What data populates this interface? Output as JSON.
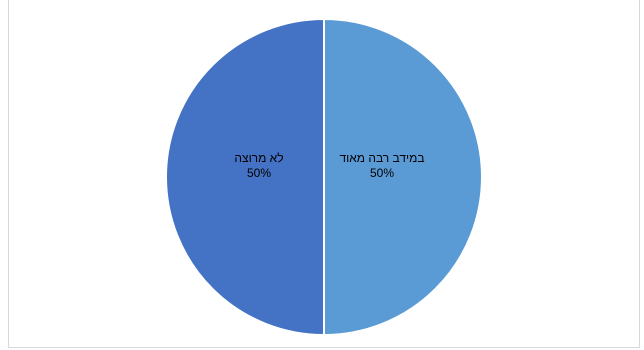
{
  "colors": {
    "slice_1": "#5b9bd5",
    "slice_2": "#4472c4",
    "separator": "#ffffff",
    "banner": "#5b9bd5"
  },
  "chart_data": {
    "type": "pie",
    "categories": [
      "במידב רבה מאוד",
      "לא מרוצה"
    ],
    "values": [
      50,
      50
    ],
    "data_labels": [
      {
        "category": "במידב רבה מאוד",
        "value": "50%"
      },
      {
        "category": "לא מרוצה",
        "value": "50%"
      }
    ],
    "start_angle_deg": 0,
    "direction": "clockwise",
    "legend": "none"
  }
}
